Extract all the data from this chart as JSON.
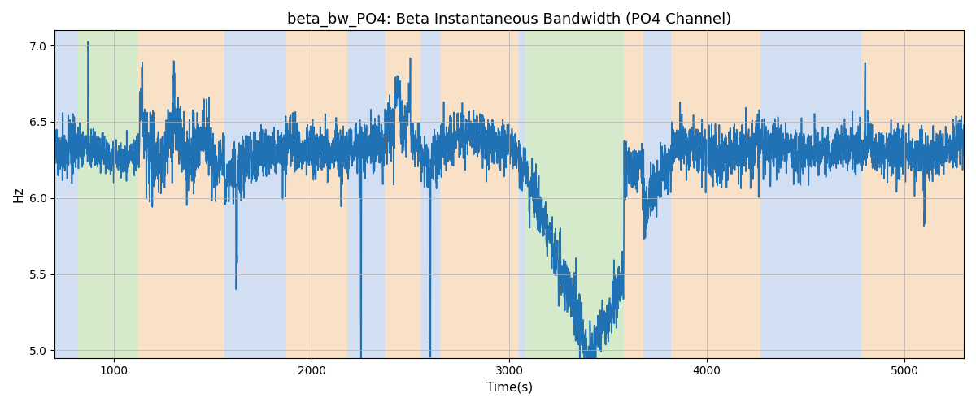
{
  "title": "beta_bw_PO4: Beta Instantaneous Bandwidth (PO4 Channel)",
  "xlabel": "Time(s)",
  "ylabel": "Hz",
  "xlim": [
    700,
    5300
  ],
  "ylim": [
    4.95,
    7.1
  ],
  "yticks": [
    5.0,
    5.5,
    6.0,
    6.5,
    7.0
  ],
  "line_color": "#2171b5",
  "line_width": 1.2,
  "bg_bands": [
    {
      "xmin": 700,
      "xmax": 820,
      "color": "#AEC6E8",
      "alpha": 0.55
    },
    {
      "xmin": 820,
      "xmax": 1120,
      "color": "#B2D9A0",
      "alpha": 0.55
    },
    {
      "xmin": 1120,
      "xmax": 1560,
      "color": "#F5C99A",
      "alpha": 0.55
    },
    {
      "xmin": 1560,
      "xmax": 1870,
      "color": "#AEC6E8",
      "alpha": 0.55
    },
    {
      "xmin": 1870,
      "xmax": 2180,
      "color": "#F5C99A",
      "alpha": 0.55
    },
    {
      "xmin": 2180,
      "xmax": 2370,
      "color": "#AEC6E8",
      "alpha": 0.55
    },
    {
      "xmin": 2370,
      "xmax": 2550,
      "color": "#F5C99A",
      "alpha": 0.55
    },
    {
      "xmin": 2550,
      "xmax": 2650,
      "color": "#AEC6E8",
      "alpha": 0.55
    },
    {
      "xmin": 2650,
      "xmax": 3050,
      "color": "#F5C99A",
      "alpha": 0.55
    },
    {
      "xmin": 3050,
      "xmax": 3080,
      "color": "#AEC6E8",
      "alpha": 0.55
    },
    {
      "xmin": 3080,
      "xmax": 3580,
      "color": "#B2D9A0",
      "alpha": 0.55
    },
    {
      "xmin": 3580,
      "xmax": 3680,
      "color": "#F5C99A",
      "alpha": 0.55
    },
    {
      "xmin": 3680,
      "xmax": 3820,
      "color": "#AEC6E8",
      "alpha": 0.55
    },
    {
      "xmin": 3820,
      "xmax": 4270,
      "color": "#F5C99A",
      "alpha": 0.55
    },
    {
      "xmin": 4270,
      "xmax": 4780,
      "color": "#AEC6E8",
      "alpha": 0.55
    },
    {
      "xmin": 4780,
      "xmax": 5300,
      "color": "#F5C99A",
      "alpha": 0.55
    }
  ],
  "seed": 17,
  "n_points": 4600,
  "base": 6.28,
  "noise_std": 0.065
}
